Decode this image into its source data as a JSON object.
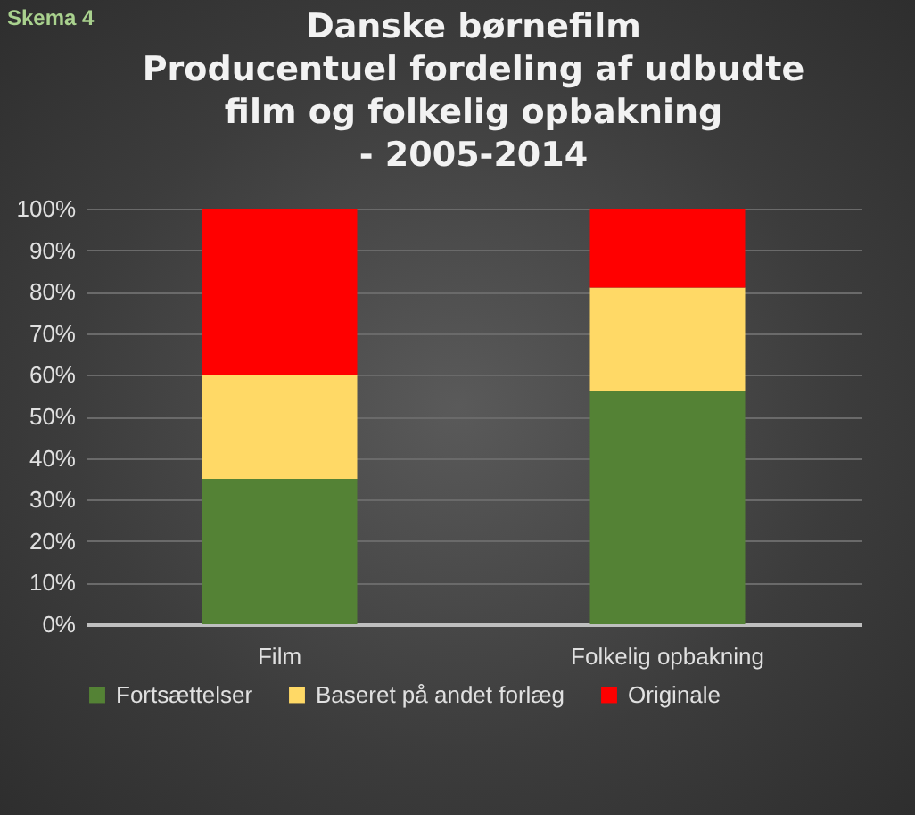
{
  "chart_data": {
    "type": "bar",
    "title": "Danske børnefilm\nProducentuel fordeling af udbudte\nfilm og folkelig opbakning\n- 2005-2014",
    "annotations": [
      "Skema 4"
    ],
    "categories": [
      "Film",
      "Folkelig opbakning"
    ],
    "stacked": true,
    "series": [
      {
        "name": "Fortsættelser",
        "color": "#548235",
        "values": [
          35,
          56
        ]
      },
      {
        "name": "Baseret på andet forlæg",
        "color": "#ffd966",
        "values": [
          25,
          25
        ]
      },
      {
        "name": "Originale",
        "color": "#ff0000",
        "values": [
          40,
          19
        ]
      }
    ],
    "ylim": [
      0,
      100
    ],
    "yticks": [
      {
        "value": 0,
        "label": "0%"
      },
      {
        "value": 10,
        "label": "10%"
      },
      {
        "value": 20,
        "label": "20%"
      },
      {
        "value": 30,
        "label": "30%"
      },
      {
        "value": 40,
        "label": "40%"
      },
      {
        "value": 50,
        "label": "50%"
      },
      {
        "value": 60,
        "label": "60%"
      },
      {
        "value": 70,
        "label": "70%"
      },
      {
        "value": 80,
        "label": "80%"
      },
      {
        "value": 90,
        "label": "90%"
      },
      {
        "value": 100,
        "label": "100%"
      }
    ],
    "grid": "y",
    "legend": "bottom"
  }
}
